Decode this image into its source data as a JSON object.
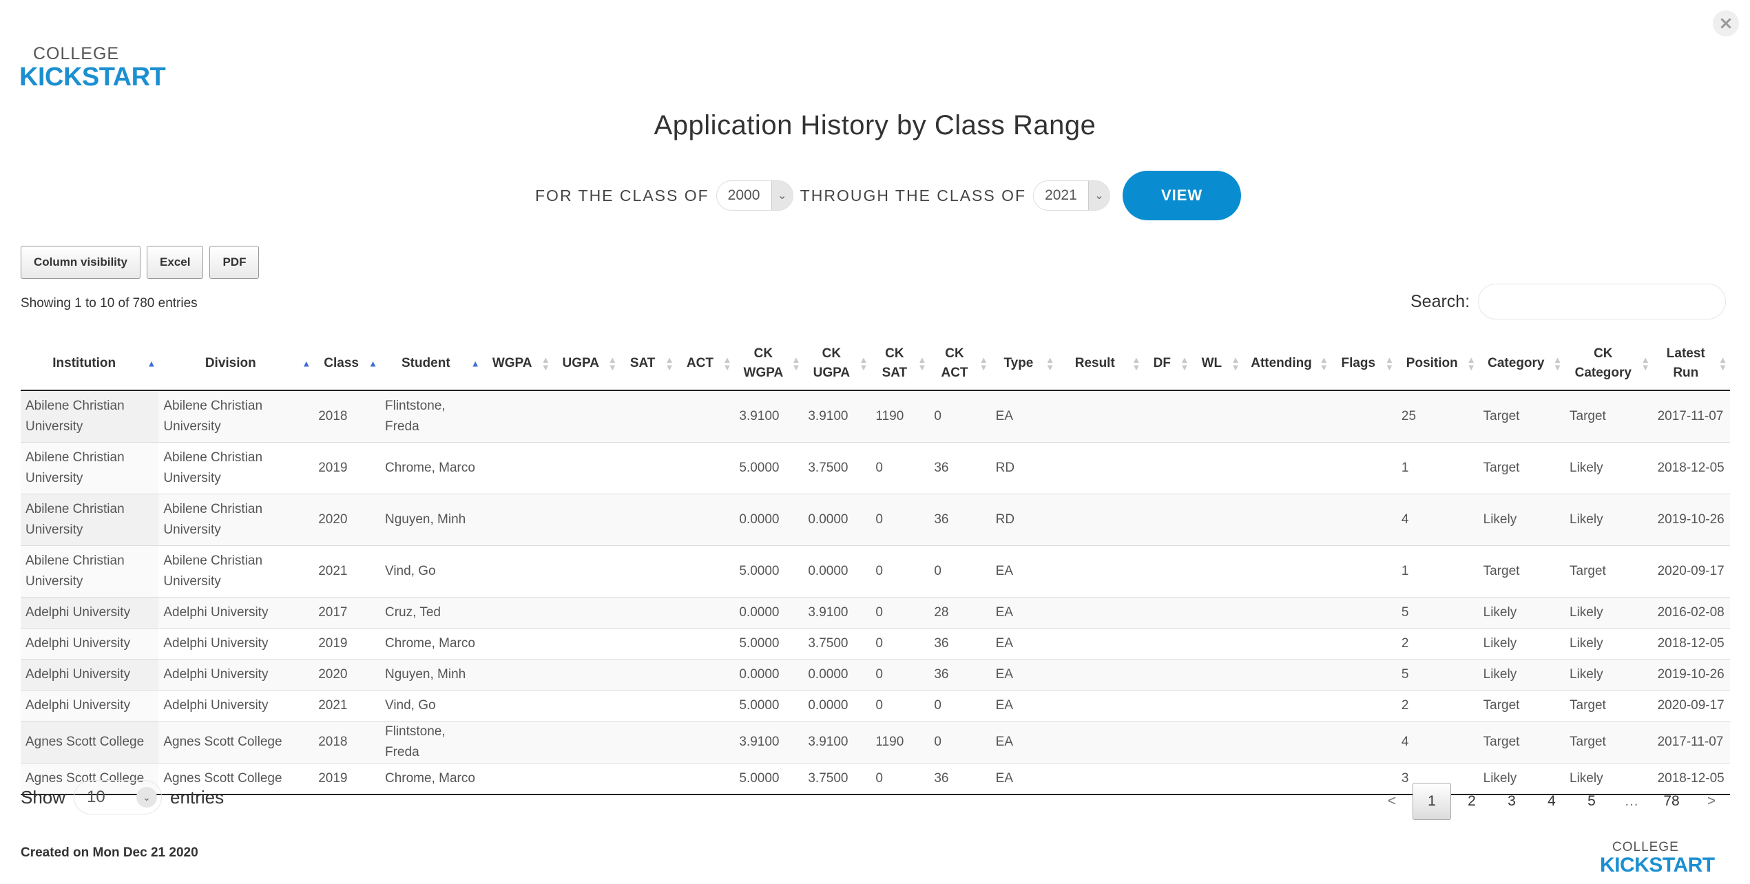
{
  "header": {
    "close_label": "×",
    "logo_top": "COLLEGE",
    "logo_bottom": "KICKSTART",
    "title": "Application History by Class Range"
  },
  "range": {
    "from_label": "FOR THE CLASS OF",
    "from_value": "2000",
    "to_label": "THROUGH THE CLASS OF",
    "to_value": "2021",
    "view_label": "VIEW"
  },
  "buttons": {
    "column_visibility": "Column visibility",
    "excel": "Excel",
    "pdf": "PDF"
  },
  "info": "Showing 1 to 10 of 780 entries",
  "search": {
    "label": "Search:",
    "placeholder": "",
    "value": ""
  },
  "columns": [
    {
      "label": "Institution",
      "sort": "asc"
    },
    {
      "label": "Division",
      "sort": "asc"
    },
    {
      "label": "Class",
      "sort": "asc"
    },
    {
      "label": "Student",
      "sort": "asc"
    },
    {
      "label": "WGPA",
      "sort": "none"
    },
    {
      "label": "UGPA",
      "sort": "none"
    },
    {
      "label": "SAT",
      "sort": "none"
    },
    {
      "label": "ACT",
      "sort": "none"
    },
    {
      "label": "CK WGPA",
      "sort": "none"
    },
    {
      "label": "CK UGPA",
      "sort": "none"
    },
    {
      "label": "CK SAT",
      "sort": "none"
    },
    {
      "label": "CK ACT",
      "sort": "none"
    },
    {
      "label": "Type",
      "sort": "none"
    },
    {
      "label": "Result",
      "sort": "none"
    },
    {
      "label": "DF",
      "sort": "none"
    },
    {
      "label": "WL",
      "sort": "none"
    },
    {
      "label": "Attending",
      "sort": "none"
    },
    {
      "label": "Flags",
      "sort": "none"
    },
    {
      "label": "Position",
      "sort": "none"
    },
    {
      "label": "Category",
      "sort": "none"
    },
    {
      "label": "CK Category",
      "sort": "none"
    },
    {
      "label": "Latest Run",
      "sort": "none"
    }
  ],
  "rows": [
    [
      "Abilene Christian University",
      "Abilene Christian University",
      "2018",
      "Flintstone, Freda",
      "",
      "",
      "",
      "",
      "3.9100",
      "3.9100",
      "1190",
      "0",
      "EA",
      "",
      "",
      "",
      "",
      "",
      "25",
      "Target",
      "Target",
      "2017-11-07"
    ],
    [
      "Abilene Christian University",
      "Abilene Christian University",
      "2019",
      "Chrome, Marco",
      "",
      "",
      "",
      "",
      "5.0000",
      "3.7500",
      "0",
      "36",
      "RD",
      "",
      "",
      "",
      "",
      "",
      "1",
      "Target",
      "Likely",
      "2018-12-05"
    ],
    [
      "Abilene Christian University",
      "Abilene Christian University",
      "2020",
      "Nguyen, Minh",
      "",
      "",
      "",
      "",
      "0.0000",
      "0.0000",
      "0",
      "36",
      "RD",
      "",
      "",
      "",
      "",
      "",
      "4",
      "Likely",
      "Likely",
      "2019-10-26"
    ],
    [
      "Abilene Christian University",
      "Abilene Christian University",
      "2021",
      "Vind, Go",
      "",
      "",
      "",
      "",
      "5.0000",
      "0.0000",
      "0",
      "0",
      "EA",
      "",
      "",
      "",
      "",
      "",
      "1",
      "Target",
      "Target",
      "2020-09-17"
    ],
    [
      "Adelphi University",
      "Adelphi University",
      "2017",
      "Cruz, Ted",
      "",
      "",
      "",
      "",
      "0.0000",
      "3.9100",
      "0",
      "28",
      "EA",
      "",
      "",
      "",
      "",
      "",
      "5",
      "Likely",
      "Likely",
      "2016-02-08"
    ],
    [
      "Adelphi University",
      "Adelphi University",
      "2019",
      "Chrome, Marco",
      "",
      "",
      "",
      "",
      "5.0000",
      "3.7500",
      "0",
      "36",
      "EA",
      "",
      "",
      "",
      "",
      "",
      "2",
      "Likely",
      "Likely",
      "2018-12-05"
    ],
    [
      "Adelphi University",
      "Adelphi University",
      "2020",
      "Nguyen, Minh",
      "",
      "",
      "",
      "",
      "0.0000",
      "0.0000",
      "0",
      "36",
      "EA",
      "",
      "",
      "",
      "",
      "",
      "5",
      "Likely",
      "Likely",
      "2019-10-26"
    ],
    [
      "Adelphi University",
      "Adelphi University",
      "2021",
      "Vind, Go",
      "",
      "",
      "",
      "",
      "5.0000",
      "0.0000",
      "0",
      "0",
      "EA",
      "",
      "",
      "",
      "",
      "",
      "2",
      "Target",
      "Target",
      "2020-09-17"
    ],
    [
      "Agnes Scott College",
      "Agnes Scott College",
      "2018",
      "Flintstone, Freda",
      "",
      "",
      "",
      "",
      "3.9100",
      "3.9100",
      "1190",
      "0",
      "EA",
      "",
      "",
      "",
      "",
      "",
      "4",
      "Target",
      "Target",
      "2017-11-07"
    ],
    [
      "Agnes Scott College",
      "Agnes Scott College",
      "2019",
      "Chrome, Marco",
      "",
      "",
      "",
      "",
      "5.0000",
      "3.7500",
      "0",
      "36",
      "EA",
      "",
      "",
      "",
      "",
      "",
      "3",
      "Likely",
      "Likely",
      "2018-12-05"
    ]
  ],
  "length": {
    "show_label": "Show",
    "value": "10",
    "entries_label": "entries"
  },
  "pagination": [
    "<",
    "1",
    "2",
    "3",
    "4",
    "5",
    "…",
    "78",
    ">"
  ],
  "pagination_current": "1",
  "footer": {
    "created": "Created on Mon Dec 21 2020"
  }
}
